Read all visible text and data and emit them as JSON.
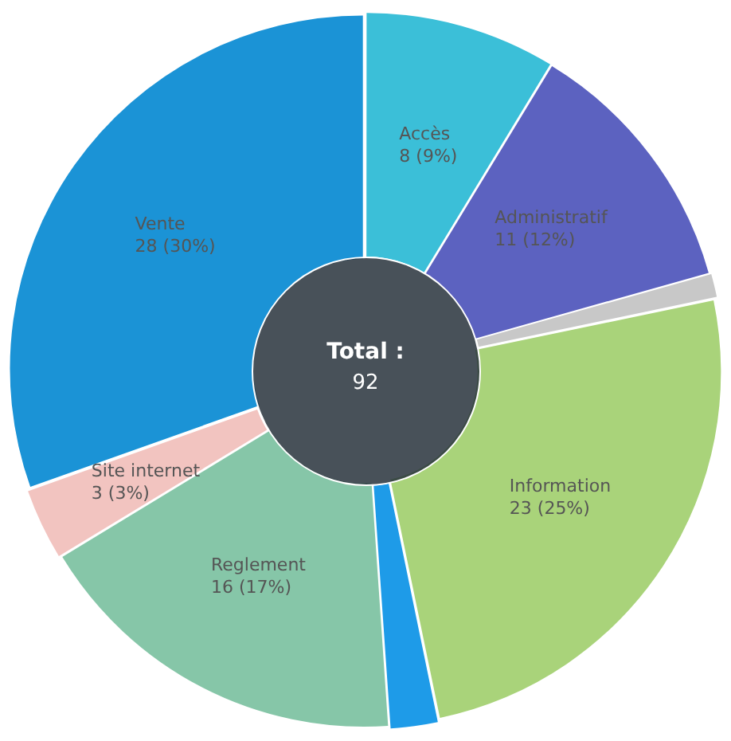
{
  "chart_data": {
    "type": "donut",
    "categories": [
      "Accès",
      "Administratif",
      null,
      "Information",
      null,
      "Reglement",
      "Site internet",
      "Vente"
    ],
    "values": [
      8,
      11,
      1,
      23,
      2,
      16,
      3,
      28
    ],
    "colors": [
      "#3bbfd8",
      "#5c62c0",
      "#c8c8c8",
      "#a9d37a",
      "#1e9be8",
      "#86c6a8",
      "#f2c4c0",
      "#1b93d6"
    ],
    "value_labels": [
      "8 (9%)",
      "11 (12%)",
      null,
      "23 (25%)",
      null,
      "16 (17%)",
      "3 (3%)",
      "28 (30%)"
    ],
    "annotations": [
      "Total :",
      "92"
    ],
    "legend": false
  }
}
